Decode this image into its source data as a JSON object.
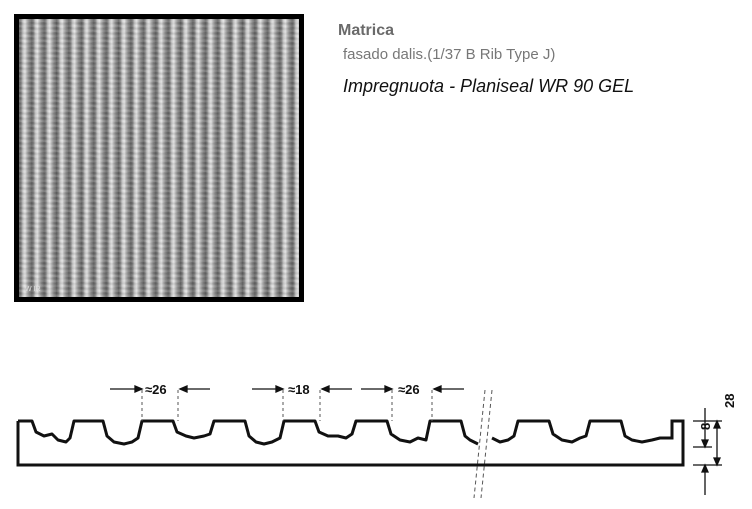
{
  "header": {
    "title": "Matrica",
    "subtitle": "fasado dalis.(1/37 B Rib Type J)",
    "product": "Impregnuota - Planiseal WR 90 GEL"
  },
  "photo": {
    "watermark": "W IR"
  },
  "profile": {
    "dims": [
      {
        "label": "≈26"
      },
      {
        "label": "≈18"
      },
      {
        "label": "≈26"
      }
    ],
    "vertical": [
      {
        "label": "8"
      },
      {
        "label": "28"
      }
    ]
  },
  "colors": {
    "line": "#111111",
    "title": "#6a6a6a"
  }
}
